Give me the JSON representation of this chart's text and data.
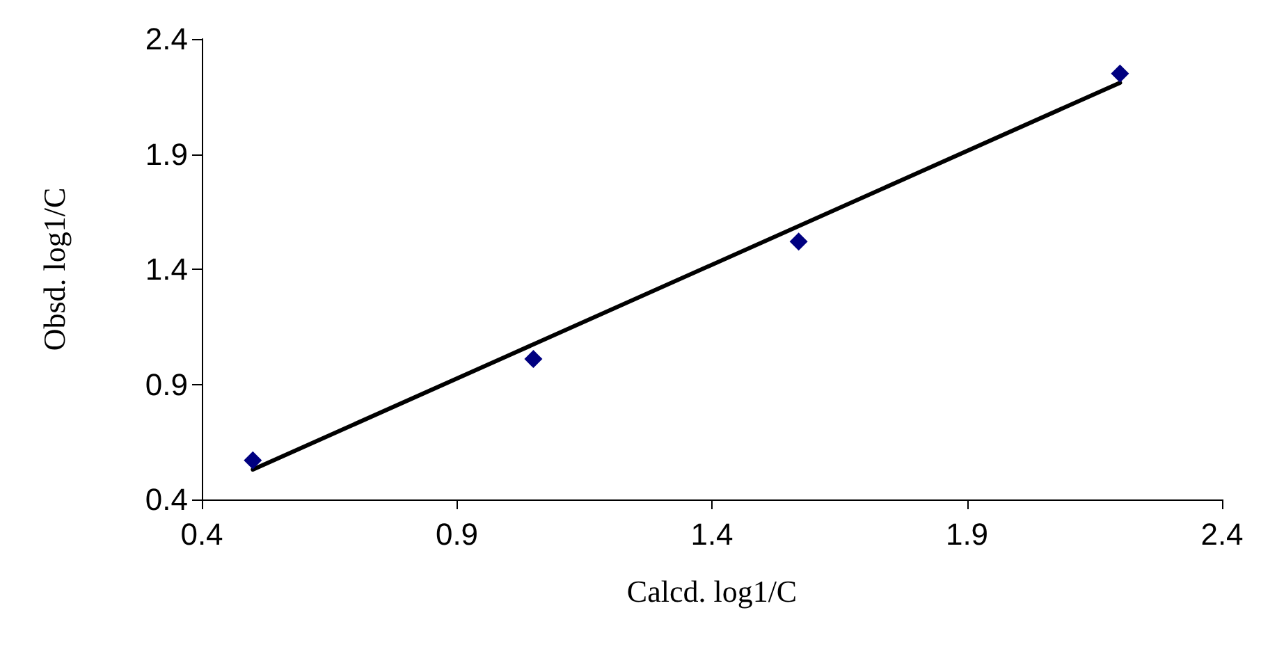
{
  "chart_data": {
    "type": "scatter",
    "xlabel": "Calcd. log1/C",
    "ylabel": "Obsd. log1/C",
    "series": [
      {
        "x": [
          0.5,
          1.05,
          1.57,
          2.2
        ],
        "values": [
          0.57,
          1.01,
          1.52,
          2.25
        ],
        "color": "#000080",
        "marker": "diamond"
      },
      {
        "type": "line",
        "x": [
          0.5,
          2.2
        ],
        "values": [
          0.53,
          2.21
        ],
        "color": "#000000",
        "marker": "none",
        "line_style": "solid"
      }
    ],
    "xlim": [
      0.4,
      2.4
    ],
    "xticks": [
      0.4,
      0.9,
      1.4,
      1.9,
      2.4
    ],
    "ylim": [
      0.4,
      2.4
    ],
    "yticks": [
      0.4,
      0.9,
      1.4,
      1.9,
      2.4
    ],
    "grid": false
  }
}
